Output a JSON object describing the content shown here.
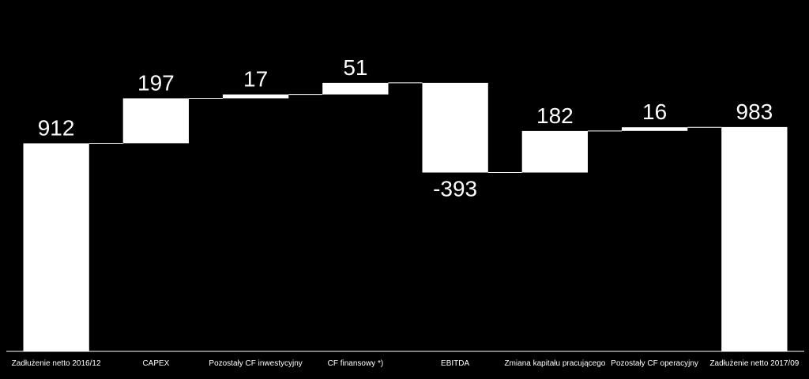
{
  "chart_data": {
    "type": "bar",
    "subtype": "waterfall",
    "categories": [
      "Zadłużenie netto 2016/12",
      "CAPEX",
      "Pozostały CF inwestycyjny",
      "CF finansowy *)",
      "EBITDA",
      "Zmiana kapitału pracującego",
      "Pozostały CF operacyjny",
      "Zadłużenie netto 2017/09"
    ],
    "values": [
      912,
      197,
      17,
      51,
      -393,
      182,
      16,
      983
    ],
    "value_labels": [
      "912",
      "197",
      "17",
      "51",
      "-393",
      "182",
      "16",
      "983"
    ],
    "bar_kinds": [
      "total",
      "delta",
      "delta",
      "delta",
      "delta",
      "delta",
      "delta",
      "total"
    ],
    "ylim": [
      0,
      1450
    ],
    "grid": false,
    "legend": "none",
    "colors": {
      "background": "#000000",
      "bar": "#ffffff",
      "connector": "#ffffff",
      "axis": "#ffffff",
      "text": "#ffffff"
    }
  }
}
